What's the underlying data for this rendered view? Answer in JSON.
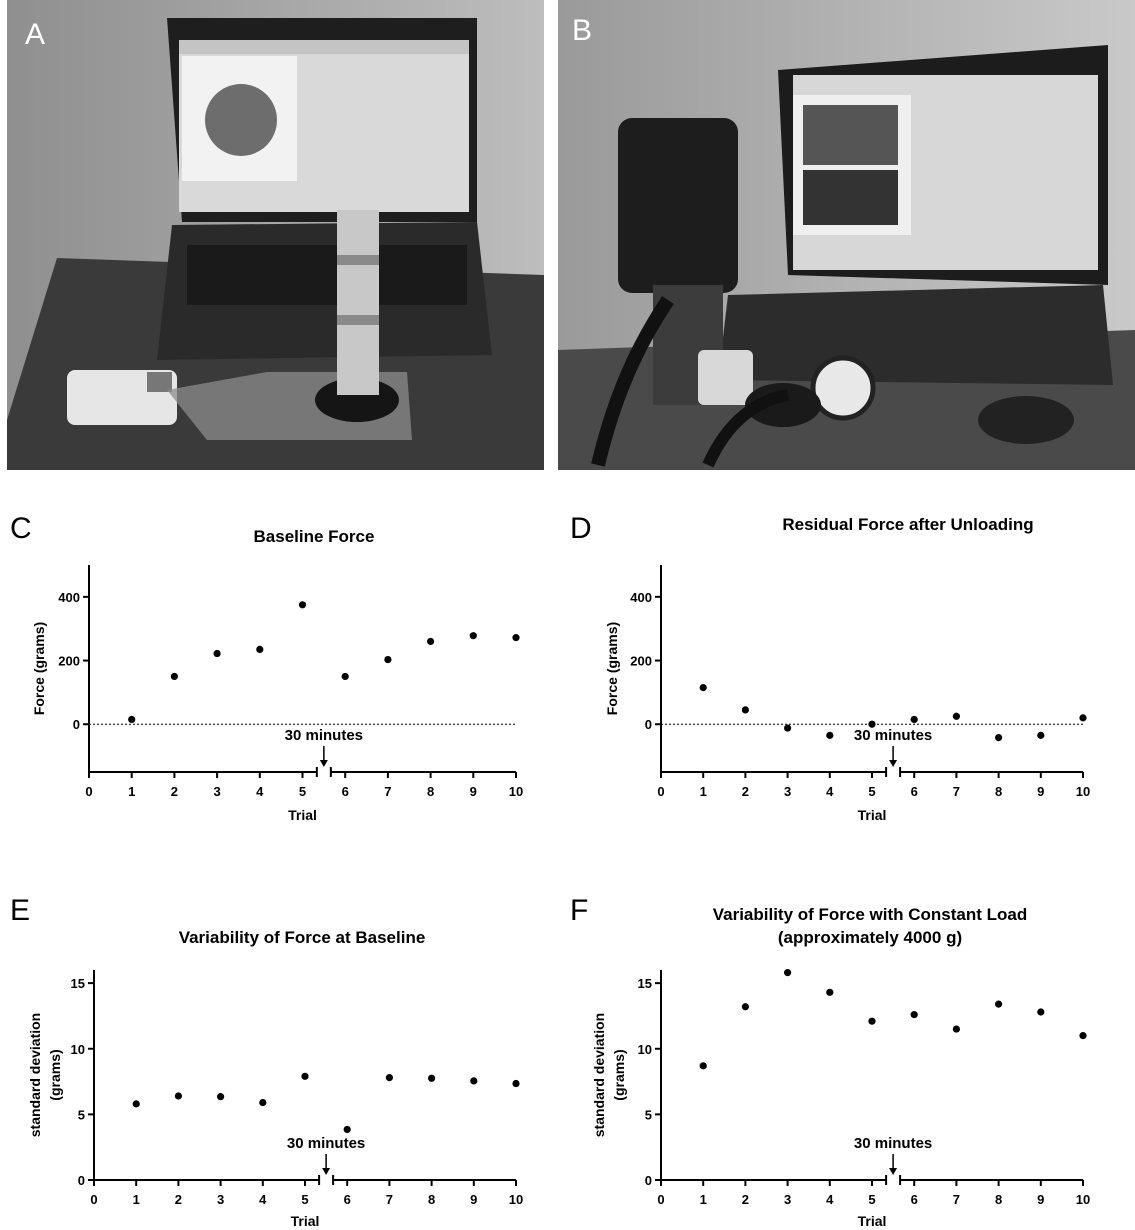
{
  "photos": [
    {
      "label": "A"
    },
    {
      "label": "B"
    }
  ],
  "chart_data": [
    {
      "panel": "C",
      "type": "scatter",
      "title": "Baseline Force",
      "xlabel": "Trial",
      "ylabel": "Force (grams)",
      "xlim": [
        0,
        10
      ],
      "ylim": [
        -150,
        500
      ],
      "xticks": [
        0,
        1,
        2,
        3,
        4,
        5,
        6,
        7,
        8,
        9,
        10
      ],
      "yticks": [
        0,
        200,
        400
      ],
      "zero_line": true,
      "annotation": {
        "text": "30 minutes",
        "x": 5.5
      },
      "x": [
        1,
        2,
        3,
        4,
        5,
        6,
        7,
        8,
        9,
        10
      ],
      "y": [
        15,
        150,
        222,
        235,
        375,
        150,
        203,
        260,
        278,
        272
      ]
    },
    {
      "panel": "D",
      "type": "scatter",
      "title": "Residual Force after Unloading",
      "xlabel": "Trial",
      "ylabel": "Force (grams)",
      "xlim": [
        0,
        10
      ],
      "ylim": [
        -150,
        500
      ],
      "xticks": [
        0,
        1,
        2,
        3,
        4,
        5,
        6,
        7,
        8,
        9,
        10
      ],
      "yticks": [
        0,
        200,
        400
      ],
      "zero_line": true,
      "annotation": {
        "text": "30 minutes",
        "x": 5.5
      },
      "x": [
        1,
        2,
        3,
        4,
        5,
        6,
        7,
        8,
        9,
        10
      ],
      "y": [
        115,
        45,
        -12,
        -35,
        0,
        15,
        25,
        -42,
        -35,
        20
      ]
    },
    {
      "panel": "E",
      "type": "scatter",
      "title": "Variability of Force at Baseline",
      "xlabel": "Trial",
      "ylabel": "standard deviation (grams)",
      "ylabel_lines": [
        "standard deviation",
        "(grams)"
      ],
      "xlim": [
        0,
        10
      ],
      "ylim": [
        0,
        16
      ],
      "xticks": [
        0,
        1,
        2,
        3,
        4,
        5,
        6,
        7,
        8,
        9,
        10
      ],
      "yticks": [
        0,
        5,
        10,
        15
      ],
      "zero_line": false,
      "annotation": {
        "text": "30 minutes",
        "x": 5.5
      },
      "x": [
        1,
        2,
        3,
        4,
        5,
        6,
        7,
        8,
        9,
        10
      ],
      "y": [
        5.8,
        6.4,
        6.35,
        5.9,
        7.9,
        3.85,
        7.8,
        7.75,
        7.55,
        7.35
      ]
    },
    {
      "panel": "F",
      "type": "scatter",
      "title": "Variability of Force with Constant  Load",
      "subtitle": "(approximately 4000 g)",
      "xlabel": "Trial",
      "ylabel": "standard deviation (grams)",
      "ylabel_lines": [
        "standard deviation",
        "(grams)"
      ],
      "xlim": [
        0,
        10
      ],
      "ylim": [
        0,
        16
      ],
      "xticks": [
        0,
        1,
        2,
        3,
        4,
        5,
        6,
        7,
        8,
        9,
        10
      ],
      "yticks": [
        0,
        5,
        10,
        15
      ],
      "zero_line": false,
      "annotation": {
        "text": "30 minutes",
        "x": 5.5
      },
      "x": [
        1,
        2,
        3,
        4,
        5,
        6,
        7,
        8,
        9,
        10
      ],
      "y": [
        8.7,
        13.2,
        15.8,
        14.3,
        12.1,
        12.6,
        11.5,
        13.4,
        12.8,
        11.0
      ]
    }
  ]
}
